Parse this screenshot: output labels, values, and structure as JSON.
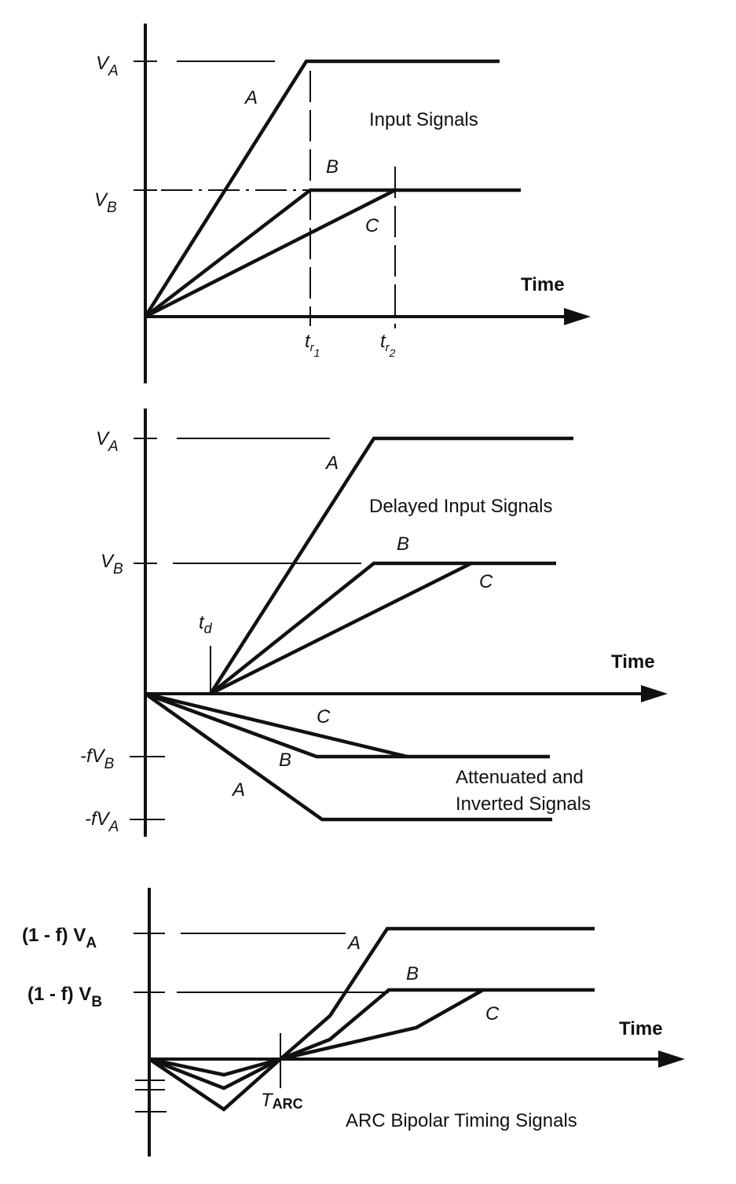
{
  "panels": [
    {
      "title": "Input Signals",
      "time": "Time",
      "levels": [
        {
          "base": "V",
          "sub": "A"
        },
        {
          "base": "V",
          "sub": "B"
        }
      ],
      "curves": [
        "A",
        "B",
        "C"
      ],
      "times": [
        {
          "base": "t",
          "sub": "r",
          "subsub": "1"
        },
        {
          "base": "t",
          "sub": "r",
          "subsub": "2"
        }
      ]
    },
    {
      "title": "Delayed Input Signals",
      "subtitle": [
        "Attenuated and",
        "Inverted Signals"
      ],
      "time": "Time",
      "levels": [
        {
          "base": "V",
          "sub": "A"
        },
        {
          "base": "V",
          "sub": "B"
        },
        {
          "base": "-fV",
          "sub": "B"
        },
        {
          "base": "-fV",
          "sub": "A"
        }
      ],
      "curves": [
        "A",
        "B",
        "C"
      ],
      "lower_curves": [
        "C",
        "B",
        "A"
      ],
      "times": [
        {
          "base": "t",
          "sub": "d"
        }
      ]
    },
    {
      "title": "ARC Bipolar Timing Signals",
      "time": "Time",
      "levels": [
        {
          "base": "(1 - f) V",
          "sub": "A"
        },
        {
          "base": "(1 - f) V",
          "sub": "B"
        }
      ],
      "curves": [
        "A",
        "B",
        "C"
      ],
      "times": [
        {
          "base": "T",
          "sub": "ARC"
        }
      ]
    }
  ]
}
